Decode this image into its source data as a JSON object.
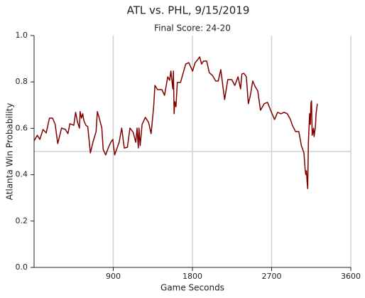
{
  "chart_data": {
    "type": "line",
    "title": "ATL vs. PHL, 9/15/2019",
    "subtitle": "Final Score: 24-20",
    "x_label": "Game Seconds",
    "y_label": "Atlanta Win Probability",
    "color": "#800000",
    "x": [
      0,
      36,
      65,
      102,
      138,
      174,
      211,
      240,
      269,
      312,
      356,
      385,
      407,
      451,
      472,
      494,
      516,
      523,
      538,
      552,
      567,
      589,
      610,
      640,
      669,
      705,
      719,
      741,
      770,
      785,
      814,
      843,
      872,
      894,
      916,
      938,
      967,
      996,
      1025,
      1061,
      1090,
      1126,
      1156,
      1170,
      1185,
      1192,
      1206,
      1228,
      1265,
      1301,
      1330,
      1359,
      1374,
      1403,
      1453,
      1483,
      1519,
      1541,
      1555,
      1577,
      1584,
      1592,
      1599,
      1613,
      1628,
      1664,
      1723,
      1759,
      1802,
      1831,
      1853,
      1882,
      1904,
      1926,
      1962,
      1991,
      2028,
      2064,
      2093,
      2122,
      2166,
      2202,
      2246,
      2282,
      2318,
      2347,
      2362,
      2384,
      2413,
      2435,
      2457,
      2485,
      2514,
      2543,
      2573,
      2616,
      2653,
      2689,
      2733,
      2769,
      2805,
      2842,
      2878,
      2914,
      2936,
      2972,
      3009,
      3038,
      3067,
      3081,
      3088,
      3096,
      3103,
      3110,
      3118,
      3132,
      3140,
      3147,
      3154,
      3161,
      3176,
      3183,
      3198,
      3205,
      3220
    ],
    "values": [
      0.546,
      0.57,
      0.552,
      0.595,
      0.58,
      0.644,
      0.644,
      0.617,
      0.534,
      0.601,
      0.595,
      0.577,
      0.62,
      0.613,
      0.669,
      0.626,
      0.601,
      0.672,
      0.644,
      0.663,
      0.632,
      0.613,
      0.607,
      0.494,
      0.54,
      0.586,
      0.672,
      0.644,
      0.601,
      0.509,
      0.485,
      0.515,
      0.54,
      0.552,
      0.485,
      0.509,
      0.54,
      0.601,
      0.515,
      0.518,
      0.601,
      0.583,
      0.54,
      0.601,
      0.515,
      0.601,
      0.525,
      0.617,
      0.647,
      0.626,
      0.577,
      0.693,
      0.785,
      0.767,
      0.767,
      0.742,
      0.822,
      0.807,
      0.847,
      0.77,
      0.847,
      0.663,
      0.715,
      0.693,
      0.798,
      0.798,
      0.877,
      0.883,
      0.847,
      0.883,
      0.893,
      0.908,
      0.877,
      0.89,
      0.89,
      0.84,
      0.828,
      0.804,
      0.804,
      0.853,
      0.724,
      0.81,
      0.81,
      0.785,
      0.822,
      0.77,
      0.834,
      0.837,
      0.822,
      0.706,
      0.739,
      0.804,
      0.779,
      0.761,
      0.678,
      0.706,
      0.712,
      0.678,
      0.638,
      0.669,
      0.663,
      0.669,
      0.663,
      0.638,
      0.613,
      0.586,
      0.586,
      0.525,
      0.494,
      0.423,
      0.4,
      0.417,
      0.371,
      0.34,
      0.54,
      0.663,
      0.617,
      0.709,
      0.718,
      0.57,
      0.6,
      0.564,
      0.607,
      0.663,
      0.706
    ],
    "xlim": [
      0,
      3600
    ],
    "xticks": [
      900,
      1800,
      2700,
      3600
    ],
    "ylim": [
      0,
      1
    ],
    "yticks": [
      {
        "value": 0,
        "label": "0.0"
      },
      {
        "value": 0.2,
        "label": "0.2"
      },
      {
        "value": 0.4,
        "label": "0.4"
      },
      {
        "value": 0.6,
        "label": "0.6"
      },
      {
        "value": 0.8,
        "label": "0.8"
      },
      {
        "value": 1,
        "label": "1.0"
      }
    ],
    "hline": 0.5,
    "grid_x": true
  }
}
